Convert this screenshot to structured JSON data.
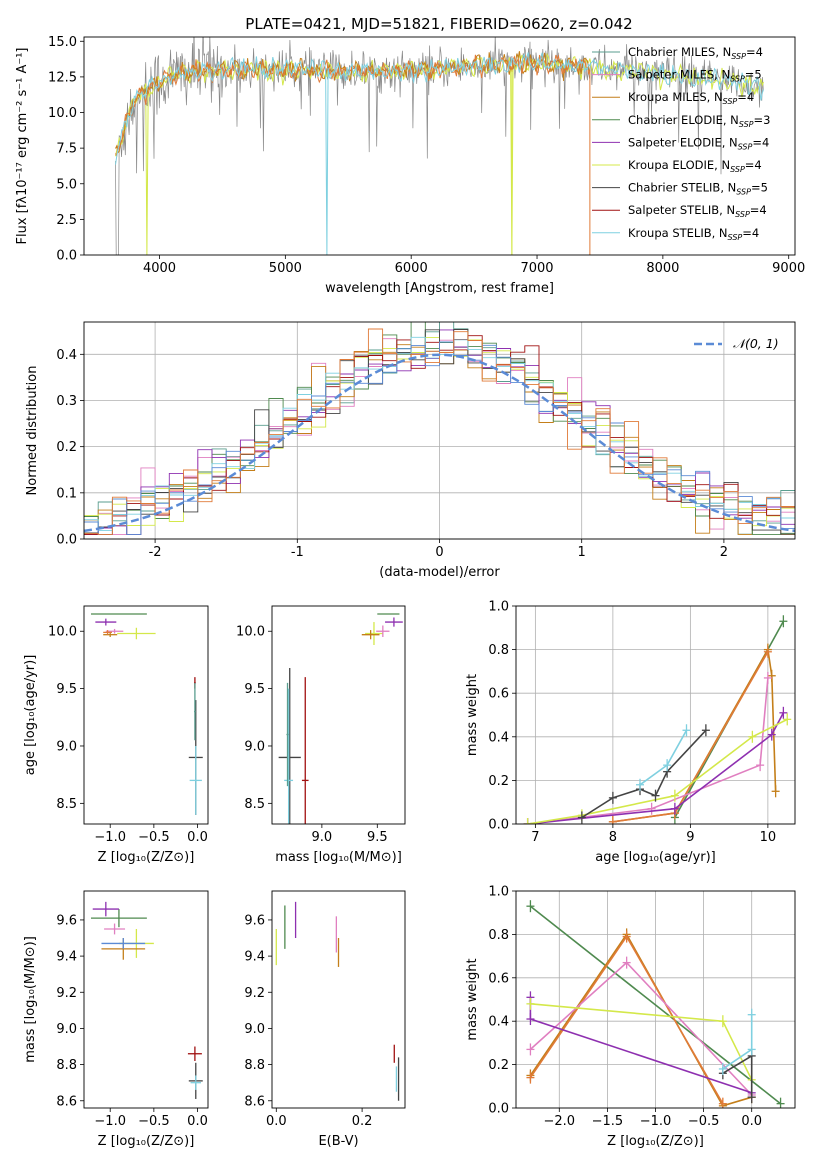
{
  "title": "PLATE=0421, MJD=51821, FIBERID=0620, z=0.042",
  "colors": {
    "chabrier_miles": "#5a9e8f",
    "salpeter_miles": "#e07fc0",
    "kroupa_miles": "#c47f1a",
    "chabrier_elodie": "#4f8a4f",
    "salpeter_elodie": "#8e30b0",
    "kroupa_elodie": "#d4e84a",
    "chabrier_stelib": "#444444",
    "salpeter_stelib": "#a01010",
    "kroupa_stelib": "#7fd0e0",
    "data": "#888888",
    "orange_fit": "#e07b39",
    "normal_curve": "#5b8bd6"
  },
  "chart_data": [
    {
      "id": "spectrum",
      "type": "line",
      "title": "PLATE=0421, MJD=51821, FIBERID=0620, z=0.042",
      "xlabel": "wavelength [Angstrom, rest frame]",
      "ylabel": "Flux [fλ10⁻¹⁷ erg cm⁻² s⁻¹ A⁻¹]",
      "xlim": [
        3400,
        9050
      ],
      "ylim": [
        0,
        15.3
      ],
      "xticks": [
        4000,
        5000,
        6000,
        7000,
        8000,
        9000
      ],
      "yticks": [
        0.0,
        2.5,
        5.0,
        7.5,
        10.0,
        12.5,
        15.0
      ],
      "grid": false,
      "legend_position": "top-right",
      "continuum": {
        "x": [
          3650,
          3800,
          4000,
          4200,
          4500,
          5000,
          5500,
          6000,
          6500,
          7000,
          7400,
          8000,
          8500,
          8800
        ],
        "y": [
          7.0,
          11.0,
          12.2,
          12.8,
          13.0,
          13.0,
          12.9,
          12.9,
          13.3,
          13.5,
          13.2,
          12.7,
          12.2,
          11.8
        ]
      },
      "legend": [
        {
          "key": "chabrier_miles",
          "label": "Chabrier MILES, N",
          "n": "4"
        },
        {
          "key": "salpeter_miles",
          "label": "Salpeter MILES, N",
          "n": "5"
        },
        {
          "key": "kroupa_miles",
          "label": "Kroupa MILES, N",
          "n": "4"
        },
        {
          "key": "chabrier_elodie",
          "label": "Chabrier ELODIE, N",
          "n": "3"
        },
        {
          "key": "salpeter_elodie",
          "label": "Salpeter ELODIE, N",
          "n": "4"
        },
        {
          "key": "kroupa_elodie",
          "label": "Kroupa ELODIE, N",
          "n": "4"
        },
        {
          "key": "chabrier_stelib",
          "label": "Chabrier STELIB, N",
          "n": "5"
        },
        {
          "key": "salpeter_stelib",
          "label": "Salpeter STELIB, N",
          "n": "4"
        },
        {
          "key": "kroupa_stelib",
          "label": "Kroupa STELIB, N",
          "n": "4"
        }
      ],
      "legend_subscript": "SSP"
    },
    {
      "id": "residuals",
      "type": "line",
      "xlabel": "(data-model)/error",
      "ylabel": "Normed distribution",
      "xlim": [
        -2.5,
        2.5
      ],
      "ylim": [
        0,
        0.47
      ],
      "xticks": [
        -2,
        -1,
        0,
        1,
        2
      ],
      "yticks": [
        0.0,
        0.1,
        0.2,
        0.3,
        0.4
      ],
      "grid": true,
      "legend_position": "top-right",
      "legend": [
        {
          "label": "𝒩(0, 1)"
        }
      ],
      "normal": {
        "mean": 0,
        "sigma": 1
      }
    },
    {
      "id": "z_age",
      "type": "scatter",
      "xlabel": "Z [log₁₀(Z/Z⊙)]",
      "ylabel": "age  [log₁₀(age/yr)]",
      "xlim": [
        -1.3,
        0.12
      ],
      "ylim": [
        8.32,
        10.22
      ],
      "xticks": [
        -1.0,
        -0.5,
        0.0
      ],
      "yticks": [
        8.5,
        9.0,
        9.5,
        10.0
      ],
      "xtick_labels": [
        "−1.0",
        "−0.5",
        "0.0"
      ],
      "ytick_labels": [
        "8.5",
        "9.0",
        "9.5",
        "10.0"
      ],
      "grid": false,
      "points": [
        {
          "s": "chabrier_elodie",
          "x": -0.9,
          "y": 10.15,
          "xe": 0.32,
          "ye": 0.0
        },
        {
          "s": "salpeter_elodie",
          "x": -1.05,
          "y": 10.08,
          "xe": 0.12,
          "ye": 0.03
        },
        {
          "s": "kroupa_elodie",
          "x": -0.7,
          "y": 9.98,
          "xe": 0.22,
          "ye": 0.05
        },
        {
          "s": "salpeter_miles",
          "x": -0.95,
          "y": 10.0,
          "xe": 0.1,
          "ye": 0.02
        },
        {
          "s": "kroupa_miles",
          "x": -1.0,
          "y": 9.97,
          "xe": 0.08,
          "ye": 0.02
        },
        {
          "s": "orange_fit",
          "x": -1.03,
          "y": 9.99,
          "xe": 0.05,
          "ye": 0.02
        },
        {
          "s": "chabrier_stelib",
          "x": -0.02,
          "y": 8.9,
          "xe": 0.08,
          "ye": 0.5
        },
        {
          "s": "salpeter_stelib",
          "x": -0.03,
          "y": 9.55,
          "xe": 0.01,
          "ye": 0.05
        },
        {
          "s": "kroupa_stelib",
          "x": -0.02,
          "y": 8.7,
          "xe": 0.07,
          "ye": 0.3
        },
        {
          "s": "chabrier_miles",
          "x": -0.03,
          "y": 9.3,
          "xe": 0.01,
          "ye": 0.25
        }
      ]
    },
    {
      "id": "mass_age",
      "type": "scatter",
      "xlabel": "mass [log₁₀(M/M⊙)]",
      "ylabel": "",
      "xlim": [
        8.55,
        9.75
      ],
      "ylim": [
        8.32,
        10.22
      ],
      "xticks": [
        9.0,
        9.5
      ],
      "yticks": [
        8.5,
        9.0,
        9.5,
        10.0
      ],
      "xtick_labels": [
        "9.0",
        "9.5"
      ],
      "ytick_labels": [
        "8.5",
        "9.0",
        "9.5",
        "10.0"
      ],
      "grid": false,
      "points": [
        {
          "s": "chabrier_stelib",
          "x": 8.71,
          "y": 8.9,
          "xe": 0.1,
          "ye": 0.78
        },
        {
          "s": "kroupa_stelib",
          "x": 8.7,
          "y": 8.7,
          "xe": 0.04,
          "ye": 0.8
        },
        {
          "s": "chabrier_miles",
          "x": 8.69,
          "y": 9.1,
          "xe": 0.01,
          "ye": 0.45
        },
        {
          "s": "salpeter_stelib",
          "x": 8.85,
          "y": 8.7,
          "xe": 0.03,
          "ye": 0.9
        },
        {
          "s": "chabrier_elodie",
          "x": 9.6,
          "y": 10.15,
          "xe": 0.1,
          "ye": 0.0
        },
        {
          "s": "salpeter_elodie",
          "x": 9.65,
          "y": 10.08,
          "xe": 0.08,
          "ye": 0.04
        },
        {
          "s": "kroupa_elodie",
          "x": 9.47,
          "y": 9.98,
          "xe": 0.08,
          "ye": 0.1
        },
        {
          "s": "salpeter_miles",
          "x": 9.55,
          "y": 10.0,
          "xe": 0.06,
          "ye": 0.05
        },
        {
          "s": "kroupa_miles",
          "x": 9.44,
          "y": 9.97,
          "xe": 0.08,
          "ye": 0.04
        }
      ]
    },
    {
      "id": "age_weight",
      "type": "line",
      "xlabel": "age  [log₁₀(age/yr)]",
      "ylabel": "mass weight",
      "xlim": [
        6.75,
        10.35
      ],
      "ylim": [
        0,
        1.0
      ],
      "xticks": [
        7,
        8,
        9,
        10
      ],
      "yticks": [
        0.0,
        0.2,
        0.4,
        0.6,
        0.8,
        1.0
      ],
      "xtick_labels": [
        "7",
        "8",
        "9",
        "10"
      ],
      "ytick_labels": [
        "0.0",
        "0.2",
        "0.4",
        "0.6",
        "0.8",
        "1.0"
      ],
      "grid": true,
      "series": [
        {
          "s": "chabrier_elodie",
          "x": [
            8.8,
            10.2
          ],
          "y": [
            0.03,
            0.93
          ]
        },
        {
          "s": "kroupa_miles",
          "x": [
            8.0,
            8.8,
            10.0,
            10.05,
            10.1
          ],
          "y": [
            0.01,
            0.05,
            0.8,
            0.68,
            0.15
          ]
        },
        {
          "s": "orange_fit",
          "x": [
            8.0,
            8.8,
            10.0
          ],
          "y": [
            0.01,
            0.05,
            0.79
          ]
        },
        {
          "s": "salpeter_miles",
          "x": [
            6.9,
            8.5,
            9.9,
            10.0
          ],
          "y": [
            0.0,
            0.07,
            0.27,
            0.67
          ]
        },
        {
          "s": "salpeter_elodie",
          "x": [
            6.9,
            8.8,
            10.05,
            10.2
          ],
          "y": [
            0.0,
            0.07,
            0.41,
            0.51
          ]
        },
        {
          "s": "kroupa_elodie",
          "x": [
            6.9,
            7.6,
            8.8,
            9.8,
            10.25
          ],
          "y": [
            0.0,
            0.04,
            0.13,
            0.4,
            0.48
          ]
        },
        {
          "s": "chabrier_stelib",
          "x": [
            7.6,
            8.0,
            8.35,
            8.55,
            8.7,
            9.2
          ],
          "y": [
            0.03,
            0.12,
            0.16,
            0.13,
            0.24,
            0.43
          ]
        },
        {
          "s": "kroupa_stelib",
          "x": [
            8.35,
            8.7,
            8.95
          ],
          "y": [
            0.18,
            0.27,
            0.43
          ]
        }
      ]
    },
    {
      "id": "z_mass",
      "type": "scatter",
      "xlabel": "Z [log₁₀(Z/Z⊙)]",
      "ylabel": "mass [log₁₀(M/M⊙)]",
      "xlim": [
        -1.3,
        0.12
      ],
      "ylim": [
        8.56,
        9.76
      ],
      "xticks": [
        -1.0,
        -0.5,
        0.0
      ],
      "yticks": [
        8.6,
        8.8,
        9.0,
        9.2,
        9.4,
        9.6
      ],
      "xtick_labels": [
        "−1.0",
        "−0.5",
        "0.0"
      ],
      "ytick_labels": [
        "8.6",
        "8.8",
        "9.0",
        "9.2",
        "9.4",
        "9.6"
      ],
      "grid": false,
      "points": [
        {
          "s": "chabrier_elodie",
          "x": -0.9,
          "y": 9.61,
          "xe": 0.32,
          "ye": 0.05
        },
        {
          "s": "salpeter_elodie",
          "x": -1.05,
          "y": 9.66,
          "xe": 0.15,
          "ye": 0.04
        },
        {
          "s": "kroupa_elodie",
          "x": -0.7,
          "y": 9.47,
          "xe": 0.2,
          "ye": 0.08
        },
        {
          "s": "salpeter_miles",
          "x": -0.95,
          "y": 9.55,
          "xe": 0.12,
          "ye": 0.03
        },
        {
          "s": "kroupa_miles",
          "x": -0.85,
          "y": 9.44,
          "xe": 0.25,
          "ye": 0.06
        },
        {
          "s": "normal_curve",
          "x": -0.85,
          "y": 9.47,
          "xe": 0.25,
          "ye": 0.03
        },
        {
          "s": "salpeter_stelib",
          "x": -0.03,
          "y": 8.86,
          "xe": 0.08,
          "ye": 0.04
        },
        {
          "s": "chabrier_stelib",
          "x": -0.02,
          "y": 8.71,
          "xe": 0.08,
          "ye": 0.1
        },
        {
          "s": "kroupa_stelib",
          "x": -0.02,
          "y": 8.7,
          "xe": 0.06,
          "ye": 0.04
        }
      ]
    },
    {
      "id": "ebv_mass",
      "type": "scatter",
      "xlabel": "E(B-V)",
      "ylabel": "",
      "xlim": [
        -0.01,
        0.3
      ],
      "ylim": [
        8.56,
        9.76
      ],
      "xticks": [
        0.0,
        0.2
      ],
      "yticks": [
        8.6,
        8.8,
        9.0,
        9.2,
        9.4,
        9.6
      ],
      "xtick_labels": [
        "0.0",
        "0.2"
      ],
      "ytick_labels": [
        "8.6",
        "8.8",
        "9.0",
        "9.2",
        "9.4",
        "9.6"
      ],
      "grid": false,
      "points": [
        {
          "s": "chabrier_elodie",
          "x": 0.02,
          "y": 9.56,
          "xe": 0.0,
          "ye": 0.12
        },
        {
          "s": "salpeter_elodie",
          "x": 0.045,
          "y": 9.6,
          "xe": 0.0,
          "ye": 0.1
        },
        {
          "s": "kroupa_elodie",
          "x": 0.0,
          "y": 9.45,
          "xe": 0.0,
          "ye": 0.1
        },
        {
          "s": "salpeter_miles",
          "x": 0.14,
          "y": 9.52,
          "xe": 0.0,
          "ye": 0.1
        },
        {
          "s": "kroupa_miles",
          "x": 0.145,
          "y": 9.42,
          "xe": 0.0,
          "ye": 0.08
        },
        {
          "s": "salpeter_stelib",
          "x": 0.275,
          "y": 8.86,
          "xe": 0.0,
          "ye": 0.05
        },
        {
          "s": "chabrier_stelib",
          "x": 0.285,
          "y": 8.72,
          "xe": 0.0,
          "ye": 0.12
        },
        {
          "s": "kroupa_stelib",
          "x": 0.28,
          "y": 8.72,
          "xe": 0.0,
          "ye": 0.07
        }
      ]
    },
    {
      "id": "z_weight",
      "type": "line",
      "xlabel": "Z [log₁₀(Z/Z⊙)]",
      "ylabel": "mass weight",
      "xlim": [
        -2.45,
        0.45
      ],
      "ylim": [
        0,
        1.0
      ],
      "xticks": [
        -2.0,
        -1.5,
        -1.0,
        -0.5,
        0.0
      ],
      "yticks": [
        0.0,
        0.2,
        0.4,
        0.6,
        0.8,
        1.0
      ],
      "xtick_labels": [
        "−2.0",
        "−1.5",
        "−1.0",
        "−0.5",
        "0.0"
      ],
      "ytick_labels": [
        "0.0",
        "0.2",
        "0.4",
        "0.6",
        "0.8",
        "1.0"
      ],
      "grid": true,
      "series": [
        {
          "s": "chabrier_elodie",
          "x": [
            -2.3,
            0.3
          ],
          "y": [
            0.93,
            0.02
          ]
        },
        {
          "s": "kroupa_miles",
          "x": [
            -2.3,
            -1.3,
            -0.3,
            0.0
          ],
          "y": [
            0.15,
            0.8,
            0.01,
            0.05
          ]
        },
        {
          "s": "orange_fit",
          "x": [
            -2.3,
            -1.3,
            -0.3
          ],
          "y": [
            0.14,
            0.79,
            0.02
          ]
        },
        {
          "s": "salpeter_miles",
          "x": [
            -2.3,
            -1.3,
            0.0
          ],
          "y": [
            0.27,
            0.67,
            0.06
          ]
        },
        {
          "s": "salpeter_elodie",
          "x": [
            -2.3,
            -2.3,
            0.0
          ],
          "y": [
            0.51,
            0.41,
            0.07
          ]
        },
        {
          "s": "kroupa_elodie",
          "x": [
            -2.3,
            -0.3,
            0.0
          ],
          "y": [
            0.48,
            0.4,
            0.13
          ]
        },
        {
          "s": "chabrier_stelib",
          "x": [
            -0.3,
            0.0,
            0.0
          ],
          "y": [
            0.16,
            0.24,
            0.05
          ]
        },
        {
          "s": "kroupa_stelib",
          "x": [
            0.0,
            0.0,
            -0.3
          ],
          "y": [
            0.43,
            0.27,
            0.18
          ]
        }
      ]
    }
  ]
}
